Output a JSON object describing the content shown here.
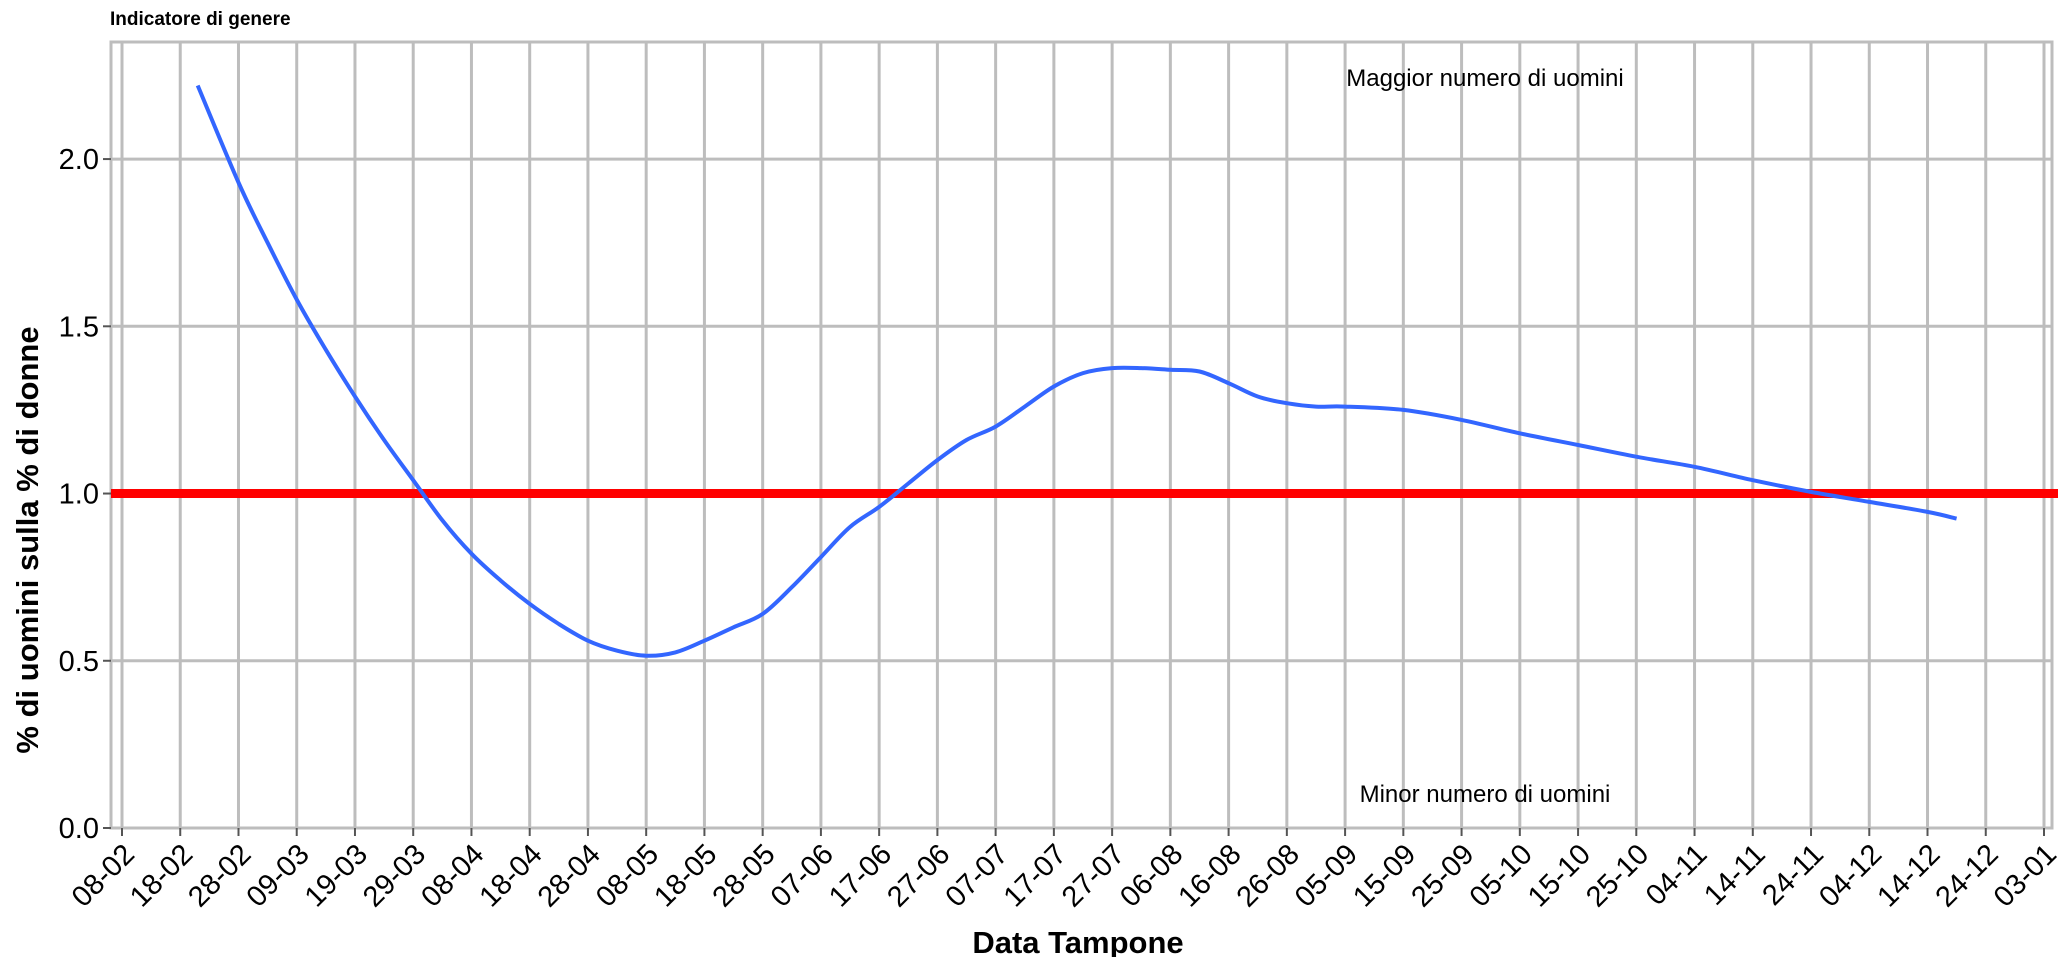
{
  "chart_data": {
    "type": "line",
    "title": "Indicatore di genere",
    "xlabel": "Data Tampone",
    "ylabel": "% di uomini sulla % di donne",
    "x_ticks": [
      "08-02",
      "18-02",
      "28-02",
      "09-03",
      "19-03",
      "29-03",
      "08-04",
      "18-04",
      "28-04",
      "08-05",
      "18-05",
      "28-05",
      "07-06",
      "17-06",
      "27-06",
      "07-07",
      "17-07",
      "27-07",
      "06-08",
      "16-08",
      "26-08",
      "05-09",
      "15-09",
      "25-09",
      "05-10",
      "15-10",
      "25-10",
      "04-11",
      "14-11",
      "24-11",
      "04-12",
      "14-12",
      "24-12",
      "03-01"
    ],
    "y_ticks": [
      "0.0",
      "0.5",
      "1.0",
      "1.5",
      "2.0"
    ],
    "xlim_days": [
      0,
      330
    ],
    "ylim": [
      0,
      2.35
    ],
    "grid": true,
    "reference_line": {
      "y": 1.0,
      "color": "#ff0000"
    },
    "series": [
      {
        "color": "#3366ff",
        "points": [
          [
            "21-02",
            2.22
          ],
          [
            "28-02",
            1.93
          ],
          [
            "04-03",
            1.75
          ],
          [
            "09-03",
            1.58
          ],
          [
            "14-03",
            1.43
          ],
          [
            "19-03",
            1.29
          ],
          [
            "24-03",
            1.16
          ],
          [
            "29-03",
            1.04
          ],
          [
            "03-04",
            0.92
          ],
          [
            "08-04",
            0.82
          ],
          [
            "13-04",
            0.74
          ],
          [
            "18-04",
            0.67
          ],
          [
            "23-04",
            0.61
          ],
          [
            "28-04",
            0.56
          ],
          [
            "03-05",
            0.53
          ],
          [
            "08-05",
            0.515
          ],
          [
            "13-05",
            0.525
          ],
          [
            "18-05",
            0.56
          ],
          [
            "23-05",
            0.6
          ],
          [
            "28-05",
            0.64
          ],
          [
            "02-06",
            0.72
          ],
          [
            "07-06",
            0.81
          ],
          [
            "12-06",
            0.9
          ],
          [
            "17-06",
            0.96
          ],
          [
            "22-06",
            1.03
          ],
          [
            "27-06",
            1.1
          ],
          [
            "02-07",
            1.16
          ],
          [
            "07-07",
            1.2
          ],
          [
            "12-07",
            1.26
          ],
          [
            "17-07",
            1.32
          ],
          [
            "22-07",
            1.36
          ],
          [
            "27-07",
            1.375
          ],
          [
            "01-08",
            1.375
          ],
          [
            "06-08",
            1.37
          ],
          [
            "11-08",
            1.365
          ],
          [
            "16-08",
            1.33
          ],
          [
            "21-08",
            1.29
          ],
          [
            "26-08",
            1.27
          ],
          [
            "31-08",
            1.26
          ],
          [
            "05-09",
            1.26
          ],
          [
            "15-09",
            1.25
          ],
          [
            "25-09",
            1.22
          ],
          [
            "05-10",
            1.18
          ],
          [
            "15-10",
            1.145
          ],
          [
            "25-10",
            1.11
          ],
          [
            "04-11",
            1.08
          ],
          [
            "14-11",
            1.04
          ],
          [
            "24-11",
            1.005
          ],
          [
            "04-12",
            0.975
          ],
          [
            "14-12",
            0.945
          ],
          [
            "19-12",
            0.925
          ]
        ]
      }
    ],
    "annotations": [
      "Maggior numero di uomini",
      "Minor numero di uomini"
    ]
  }
}
